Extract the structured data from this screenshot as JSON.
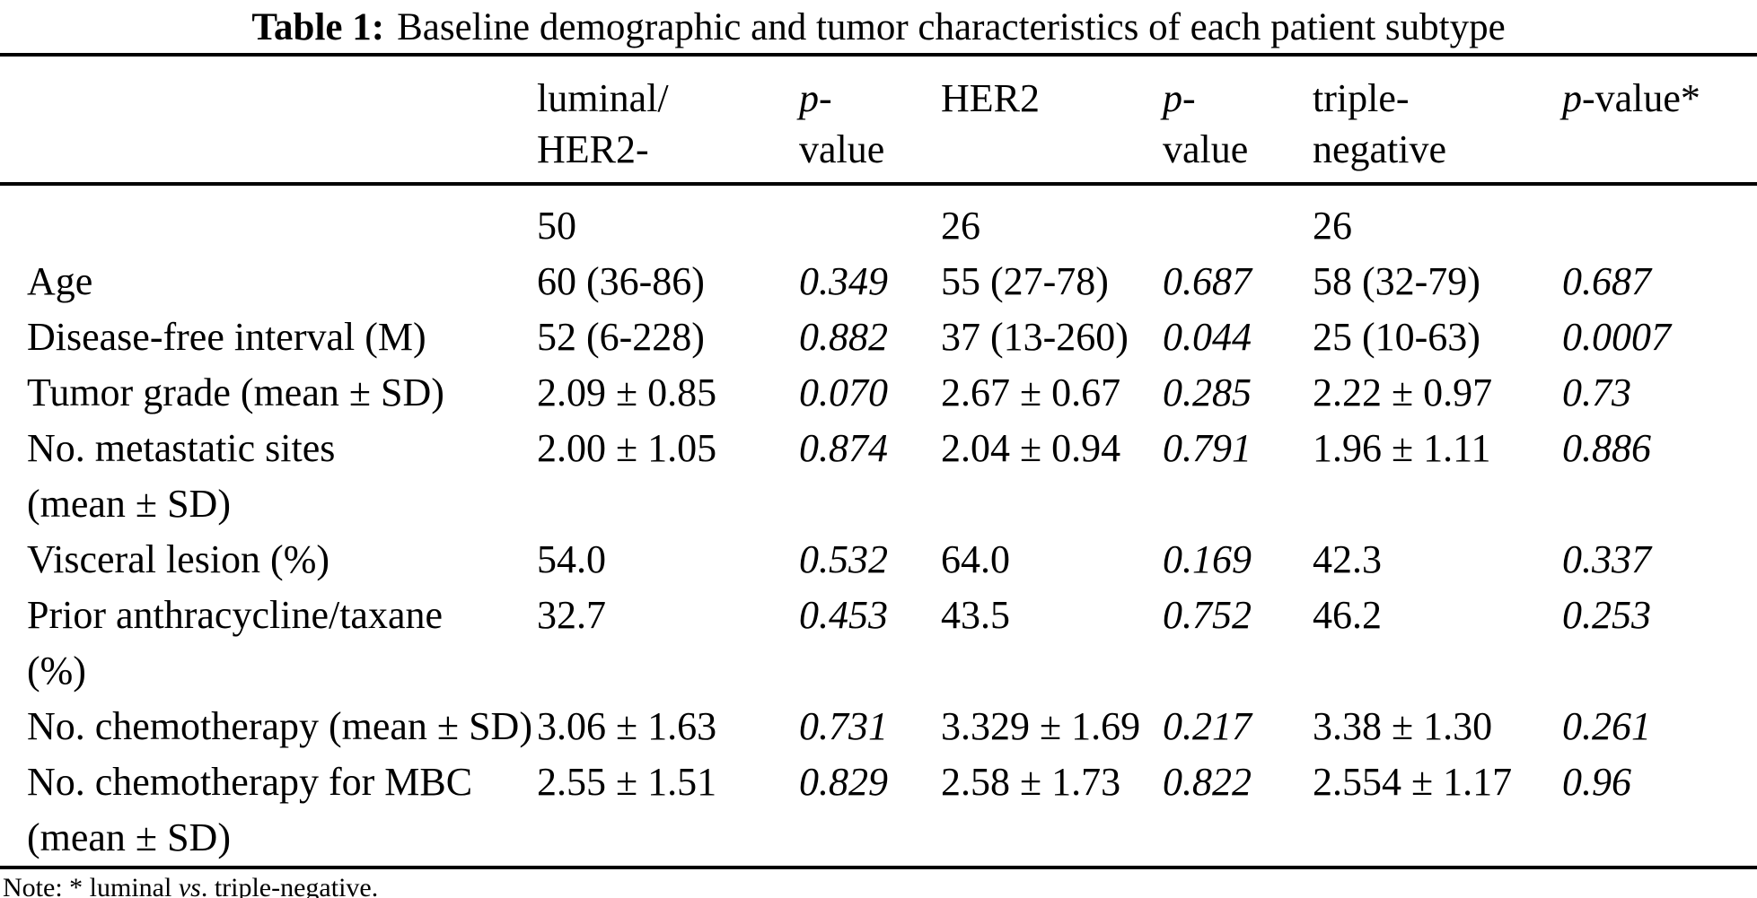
{
  "colors": {
    "text": "#000000",
    "background": "#ffffff",
    "rule": "#000000"
  },
  "title": {
    "segments": [
      {
        "text": "Table 1:",
        "bold": true
      },
      {
        "text": "Baseline demographic and tumor characteristics of each patient subtype"
      }
    ]
  },
  "table": {
    "header": [
      {
        "lines": [
          [
            {
              "text": ""
            }
          ]
        ]
      },
      {
        "lines": [
          [
            {
              "text": "luminal/"
            }
          ],
          [
            {
              "text": "HER2-"
            }
          ]
        ]
      },
      {
        "lines": [
          [
            {
              "text": "p",
              "italic": true
            },
            {
              "text": "-"
            }
          ],
          [
            {
              "text": "value"
            }
          ]
        ]
      },
      {
        "lines": [
          [
            {
              "text": "HER2"
            }
          ]
        ]
      },
      {
        "lines": [
          [
            {
              "text": "p",
              "italic": true
            },
            {
              "text": "-"
            }
          ],
          [
            {
              "text": "value"
            }
          ]
        ]
      },
      {
        "lines": [
          [
            {
              "text": "triple-"
            }
          ],
          [
            {
              "text": "negative"
            }
          ]
        ]
      },
      {
        "lines": [
          [
            {
              "text": "p",
              "italic": true
            },
            {
              "text": "-value*"
            }
          ]
        ]
      }
    ],
    "italic_columns": [
      2,
      4,
      6
    ],
    "rows": [
      {
        "label": "",
        "values": [
          "50",
          "",
          "26",
          "",
          "26",
          ""
        ]
      },
      {
        "label": "Age",
        "values": [
          "60 (36-86)",
          "0.349",
          "55 (27-78)",
          "0.687",
          "58 (32-79)",
          "0.687"
        ]
      },
      {
        "label": "Disease-free interval (M)",
        "values": [
          "52 (6-228)",
          "0.882",
          "37 (13-260)",
          "0.044",
          "25 (10-63)",
          "0.0007"
        ]
      },
      {
        "label": "Tumor grade (mean ± SD)",
        "values": [
          "2.09 ± 0.85",
          "0.070",
          "2.67 ± 0.67",
          "0.285",
          "2.22 ± 0.97",
          "0.73"
        ]
      },
      {
        "label": "No. metastatic sites\n(mean ± SD)",
        "values": [
          "2.00 ± 1.05",
          "0.874",
          "2.04 ± 0.94",
          "0.791",
          "1.96 ± 1.11",
          "0.886"
        ]
      },
      {
        "label": "Visceral lesion (%)",
        "values": [
          "54.0",
          "0.532",
          "64.0",
          "0.169",
          "42.3",
          "0.337"
        ]
      },
      {
        "label": "Prior anthracycline/taxane\n(%)",
        "values": [
          "32.7",
          "0.453",
          "43.5",
          "0.752",
          "46.2",
          "0.253"
        ]
      },
      {
        "label": "No. chemotherapy (mean ± SD)",
        "values": [
          "3.06 ± 1.63",
          "0.731",
          "3.329 ± 1.69",
          "0.217",
          "3.38 ± 1.30",
          "0.261"
        ]
      },
      {
        "label": "No. chemotherapy for MBC\n(mean ± SD)",
        "values": [
          "2.55 ± 1.51",
          "0.829",
          "2.58 ± 1.73",
          "0.822",
          "2.554 ± 1.17",
          "0.96"
        ]
      }
    ],
    "note_segments": [
      {
        "text": "Note: * luminal "
      },
      {
        "text": "vs",
        "italic": true
      },
      {
        "text": ". triple-negative."
      }
    ]
  },
  "chart_data": {
    "type": "table",
    "title": "Table 1: Baseline demographic and tumor characteristics of each patient subtype",
    "columns": [
      "",
      "luminal/HER2-",
      "p-value",
      "HER2",
      "p-value",
      "triple-negative",
      "p-value*"
    ],
    "rows": [
      [
        "",
        "50",
        "",
        "26",
        "",
        "26",
        ""
      ],
      [
        "Age",
        "60 (36-86)",
        "0.349",
        "55 (27-78)",
        "0.687",
        "58 (32-79)",
        "0.687"
      ],
      [
        "Disease-free interval (M)",
        "52 (6-228)",
        "0.882",
        "37 (13-260)",
        "0.044",
        "25 (10-63)",
        "0.0007"
      ],
      [
        "Tumor grade (mean ± SD)",
        "2.09 ± 0.85",
        "0.070",
        "2.67 ± 0.67",
        "0.285",
        "2.22 ± 0.97",
        "0.73"
      ],
      [
        "No. metastatic sites (mean ± SD)",
        "2.00 ± 1.05",
        "0.874",
        "2.04 ± 0.94",
        "0.791",
        "1.96 ± 1.11",
        "0.886"
      ],
      [
        "Visceral lesion (%)",
        "54.0",
        "0.532",
        "64.0",
        "0.169",
        "42.3",
        "0.337"
      ],
      [
        "Prior anthracycline/taxane (%)",
        "32.7",
        "0.453",
        "43.5",
        "0.752",
        "46.2",
        "0.253"
      ],
      [
        "No. chemotherapy (mean ± SD)",
        "3.06 ± 1.63",
        "0.731",
        "3.329 ± 1.69",
        "0.217",
        "3.38 ± 1.30",
        "0.261"
      ],
      [
        "No. chemotherapy for MBC (mean ± SD)",
        "2.55 ± 1.51",
        "0.829",
        "2.58 ± 1.73",
        "0.822",
        "2.554 ± 1.17",
        "0.96"
      ]
    ],
    "note": "Note: * luminal vs. triple-negative."
  }
}
